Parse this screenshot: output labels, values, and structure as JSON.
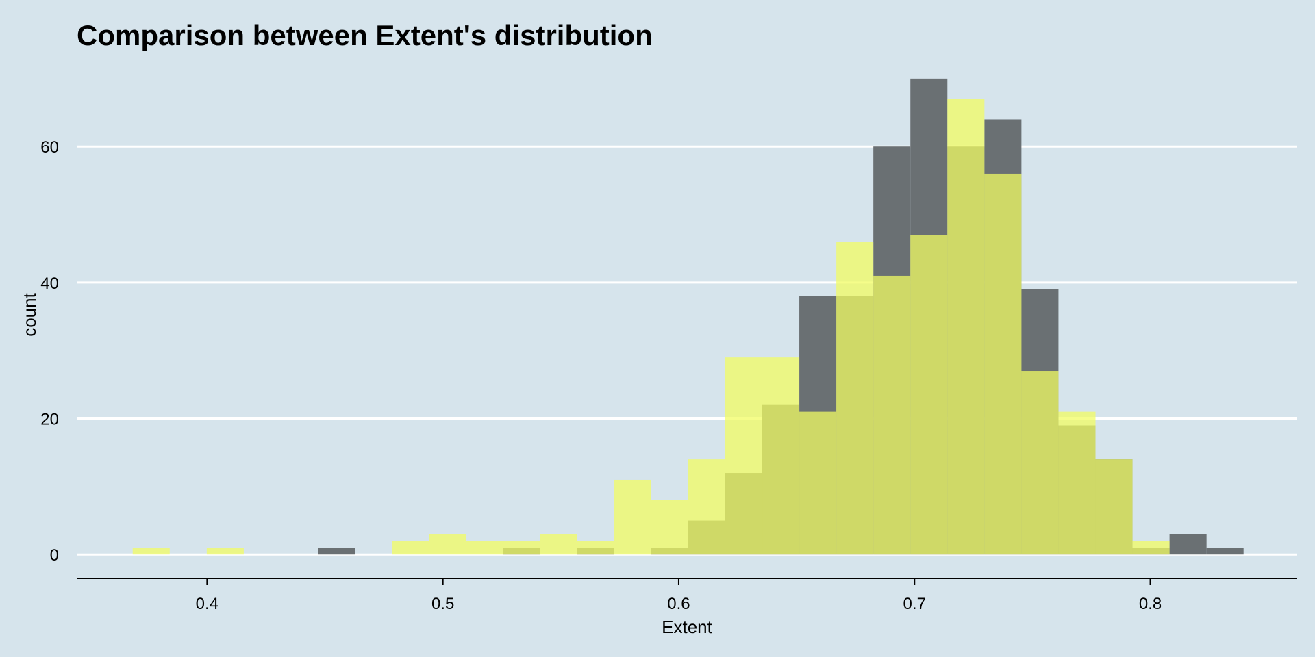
{
  "chart_data": {
    "type": "bar",
    "title": "Comparison between Extent's distribution",
    "xlabel": "Extent",
    "ylabel": "count",
    "xlim": [
      0.345,
      0.862
    ],
    "ylim": [
      -3.5,
      72
    ],
    "bin_width": 0.0157,
    "x_ticks": [
      0.4,
      0.5,
      0.6,
      0.7,
      0.8
    ],
    "x_tick_labels": [
      "0.4",
      "0.5",
      "0.6",
      "0.7",
      "0.8"
    ],
    "y_ticks": [
      0,
      20,
      40,
      60
    ],
    "y_tick_labels": [
      "0",
      "20",
      "40",
      "60"
    ],
    "grid": "horizontal",
    "background": "#d6e4ec",
    "series": [
      {
        "color": "#6a7073",
        "bins": [
          {
            "x": 0.4548,
            "count": 1
          },
          {
            "x": 0.5333,
            "count": 1
          },
          {
            "x": 0.5648,
            "count": 1
          },
          {
            "x": 0.5962,
            "count": 1
          },
          {
            "x": 0.6119,
            "count": 5
          },
          {
            "x": 0.6276,
            "count": 12
          },
          {
            "x": 0.6433,
            "count": 22
          },
          {
            "x": 0.659,
            "count": 38
          },
          {
            "x": 0.6747,
            "count": 38
          },
          {
            "x": 0.6904,
            "count": 60
          },
          {
            "x": 0.7061,
            "count": 70
          },
          {
            "x": 0.7218,
            "count": 60
          },
          {
            "x": 0.7375,
            "count": 64
          },
          {
            "x": 0.7532,
            "count": 39
          },
          {
            "x": 0.7689,
            "count": 19
          },
          {
            "x": 0.7846,
            "count": 14
          },
          {
            "x": 0.8003,
            "count": 1
          },
          {
            "x": 0.816,
            "count": 3
          },
          {
            "x": 0.8317,
            "count": 1
          }
        ]
      },
      {
        "color": "#f1fc63",
        "bins": [
          {
            "x": 0.3763,
            "count": 1
          },
          {
            "x": 0.4077,
            "count": 1
          },
          {
            "x": 0.4862,
            "count": 2
          },
          {
            "x": 0.5019,
            "count": 3
          },
          {
            "x": 0.5176,
            "count": 2
          },
          {
            "x": 0.5333,
            "count": 2
          },
          {
            "x": 0.5491,
            "count": 3
          },
          {
            "x": 0.5648,
            "count": 2
          },
          {
            "x": 0.5805,
            "count": 11
          },
          {
            "x": 0.5962,
            "count": 8
          },
          {
            "x": 0.6119,
            "count": 14
          },
          {
            "x": 0.6276,
            "count": 29
          },
          {
            "x": 0.6433,
            "count": 29
          },
          {
            "x": 0.659,
            "count": 21
          },
          {
            "x": 0.6747,
            "count": 46
          },
          {
            "x": 0.6904,
            "count": 41
          },
          {
            "x": 0.7061,
            "count": 47
          },
          {
            "x": 0.7218,
            "count": 67
          },
          {
            "x": 0.7375,
            "count": 56
          },
          {
            "x": 0.7532,
            "count": 27
          },
          {
            "x": 0.7689,
            "count": 21
          },
          {
            "x": 0.7846,
            "count": 14
          },
          {
            "x": 0.8003,
            "count": 2
          }
        ]
      }
    ]
  }
}
